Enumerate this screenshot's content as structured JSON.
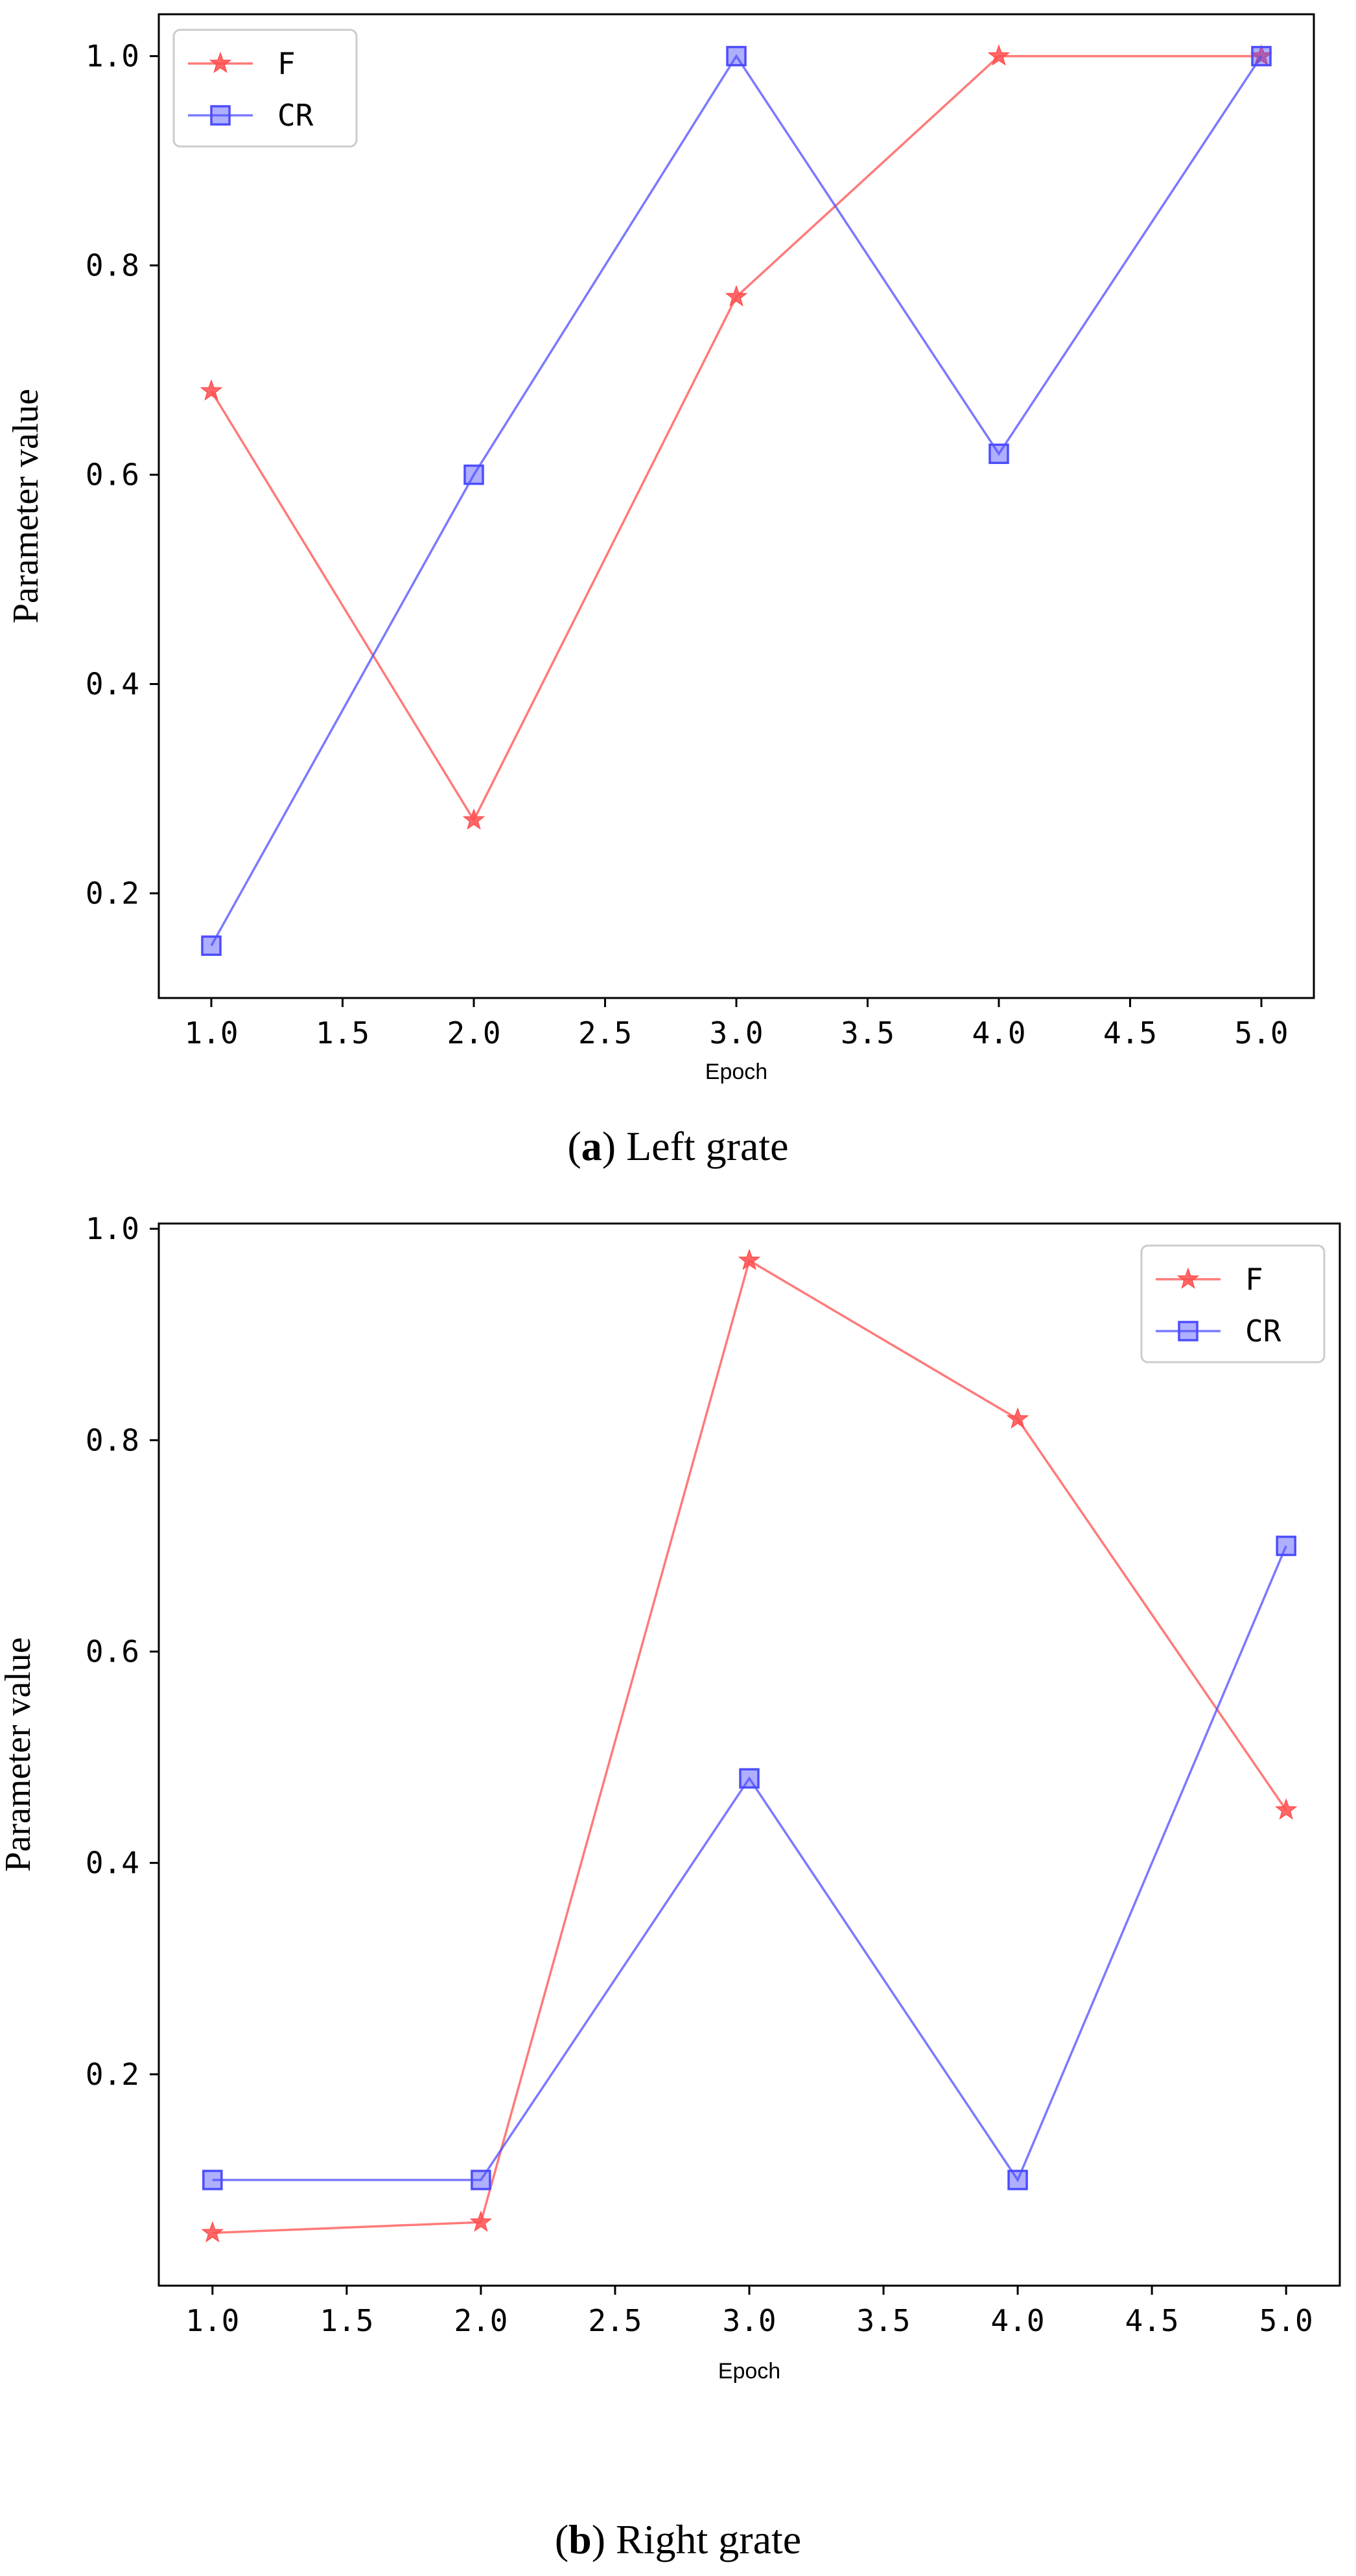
{
  "chart_data": [
    {
      "type": "line",
      "caption_letter": "a",
      "caption_text": "Left grate",
      "xlabel": "Epoch",
      "ylabel": "Parameter value",
      "xlim": [
        0.8,
        5.2
      ],
      "ylim": [
        0.1,
        1.04
      ],
      "xticks": [
        "1.0",
        "1.5",
        "2.0",
        "2.5",
        "3.0",
        "3.5",
        "4.0",
        "4.5",
        "5.0"
      ],
      "yticks": [
        "0.2",
        "0.4",
        "0.6",
        "0.8",
        "1.0"
      ],
      "legend_position": "upper-left",
      "x": [
        1.0,
        2.0,
        3.0,
        4.0,
        5.0
      ],
      "series": [
        {
          "name": "F",
          "marker": "star",
          "color": "#ff4d4d",
          "values": [
            0.68,
            0.27,
            0.77,
            1.0,
            1.0
          ]
        },
        {
          "name": "CR",
          "marker": "square",
          "color": "#4d4dff",
          "values": [
            0.15,
            0.6,
            1.0,
            0.62,
            1.0
          ]
        }
      ]
    },
    {
      "type": "line",
      "caption_letter": "b",
      "caption_text": "Right grate",
      "xlabel": "Epoch",
      "ylabel": "Parameter value",
      "xlim": [
        0.8,
        5.2
      ],
      "ylim": [
        0.0,
        1.005
      ],
      "xticks": [
        "1.0",
        "1.5",
        "2.0",
        "2.5",
        "3.0",
        "3.5",
        "4.0",
        "4.5",
        "5.0"
      ],
      "yticks": [
        "0.2",
        "0.4",
        "0.6",
        "0.8",
        "1.0"
      ],
      "legend_position": "upper-right",
      "x": [
        1.0,
        2.0,
        3.0,
        4.0,
        5.0
      ],
      "series": [
        {
          "name": "F",
          "marker": "star",
          "color": "#ff4d4d",
          "values": [
            0.05,
            0.06,
            0.97,
            0.82,
            0.45
          ]
        },
        {
          "name": "CR",
          "marker": "square",
          "color": "#4d4dff",
          "values": [
            0.1,
            0.1,
            0.48,
            0.1,
            0.7
          ]
        }
      ]
    }
  ]
}
